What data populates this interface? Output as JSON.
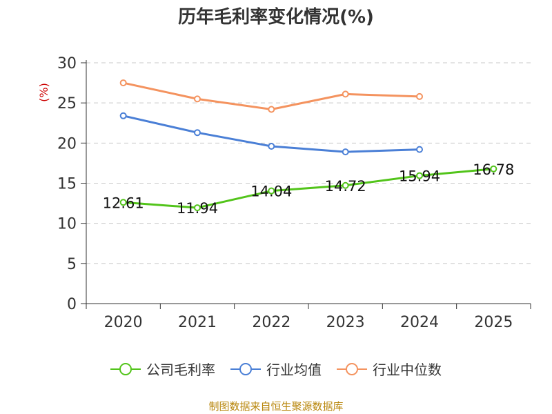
{
  "chart_data": {
    "type": "line",
    "title": "历年毛利率变化情况(%)",
    "ylabel": "(%)",
    "xlabel": "",
    "categories": [
      "2020",
      "2021",
      "2022",
      "2023",
      "2024",
      "2025"
    ],
    "ylim": [
      0,
      30
    ],
    "yticks": [
      0,
      5,
      10,
      15,
      20,
      25,
      30
    ],
    "grid": "horizontal-dashed",
    "legend_position": "bottom",
    "series": [
      {
        "name": "公司毛利率",
        "color": "#52c41a",
        "values": [
          12.61,
          11.94,
          14.04,
          14.72,
          15.94,
          16.78
        ],
        "labels": [
          "12.61",
          "11.94",
          "14.04",
          "14.72",
          "15.94",
          "16.78"
        ]
      },
      {
        "name": "行业均值",
        "color": "#4a7fd6",
        "values": [
          23.4,
          21.3,
          19.6,
          18.9,
          19.2,
          null
        ]
      },
      {
        "name": "行业中位数",
        "color": "#f4935f",
        "values": [
          27.5,
          25.5,
          24.2,
          26.1,
          25.8,
          null
        ]
      }
    ]
  },
  "source": "制图数据来自恒生聚源数据库"
}
